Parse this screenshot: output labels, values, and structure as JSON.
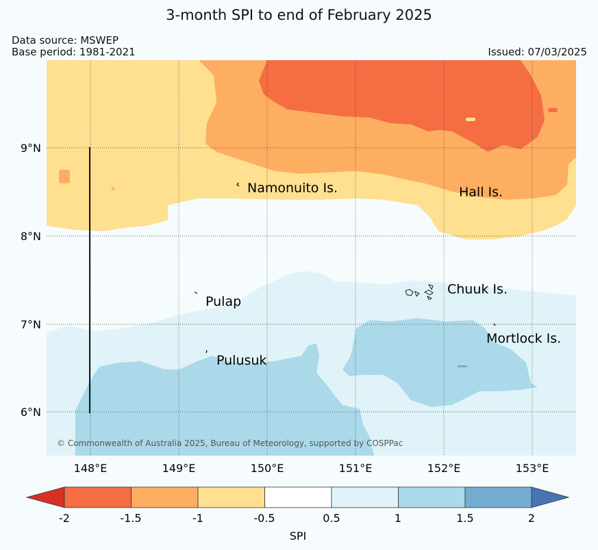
{
  "title": "3-month SPI to end of February 2025",
  "data_source": "Data source: MSWEP",
  "base_period": "Base period: 1981-2021",
  "issued": "Issued: 07/03/2025",
  "copyright": "© Commonwealth of Australia 2025, Bureau of Meteorology, supported by COSPPac",
  "lon_labels": [
    "148°E",
    "149°E",
    "150°E",
    "151°E",
    "152°E",
    "153°E"
  ],
  "lat_labels": [
    "9°N",
    "8°N",
    "7°N",
    "6°N"
  ],
  "places": {
    "namonuito": "Namonuito Is.",
    "hall": "Hall Is.",
    "chuuk": "Chuuk Is.",
    "pulap": "Pulap",
    "mortlock": "Mortlock Is.",
    "pulusuk": "Pulusuk"
  },
  "colorbar": {
    "label": "SPI",
    "ticks": [
      "-2",
      "-1.5",
      "-1",
      "-0.5",
      "0.5",
      "1",
      "1.5",
      "2"
    ],
    "colors": {
      "lt_neg2": "#d73027",
      "neg2_neg1_5": "#f46d43",
      "neg1_5_neg1": "#fdae61",
      "neg1_neg0_5": "#fee090",
      "neutral": "#ffffff",
      "p0_5_p1": "#e0f3f8",
      "p1_p1_5": "#abd9e9",
      "p1_5_p2": "#74add1",
      "gt_2": "#4575b4"
    }
  }
}
